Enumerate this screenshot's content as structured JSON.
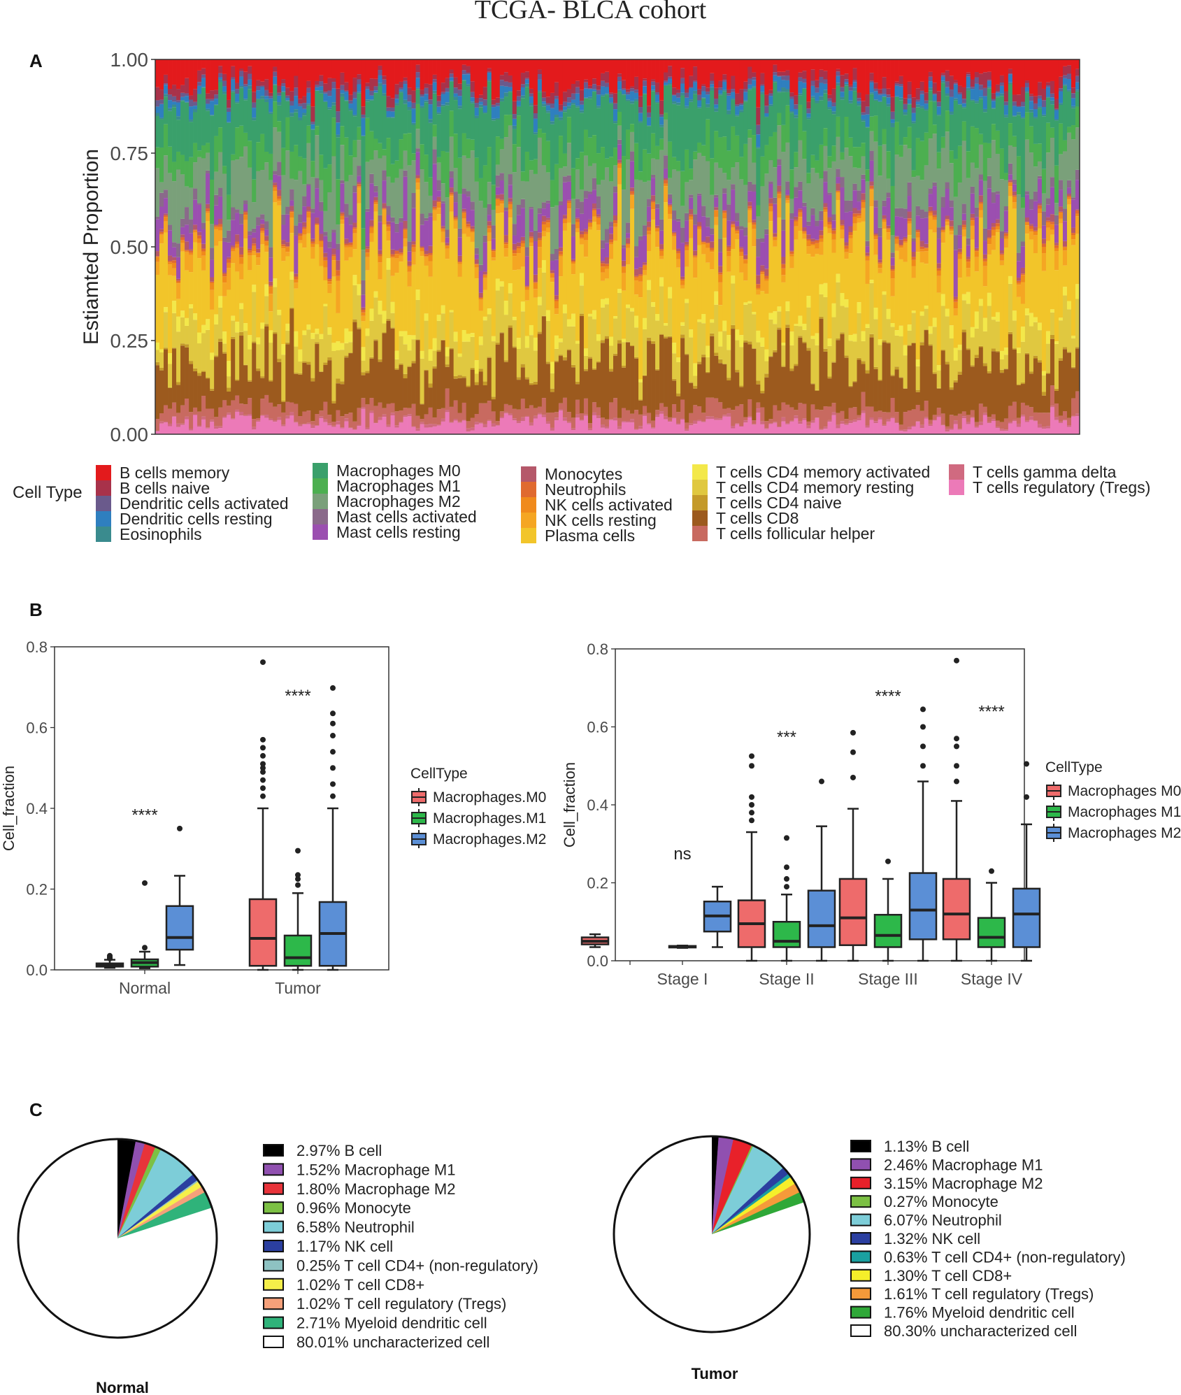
{
  "figure_title": "TCGA- BLCA cohort",
  "panel_labels": [
    "A",
    "B",
    "C"
  ],
  "colors": {
    "B cells memory": "#e31a1c",
    "B cells naive": "#a8324a",
    "Dendritic cells activated": "#6a5a8c",
    "Dendritic cells resting": "#2f7fbf",
    "Eosinophils": "#3a8b8e",
    "Macrophages M0": "#3aa06b",
    "Macrophages M1": "#4caf50",
    "Macrophages M2": "#7aa07a",
    "Mast cells activated": "#8a6a8a",
    "Mast cells resting": "#9b4fb0",
    "Monocytes": "#b5586a",
    "Neutrophils": "#e06a30",
    "NK cells activated": "#f08a1c",
    "NK cells resting": "#f5a623",
    "Plasma cells": "#f2c52a",
    "T cells CD4 memory activated": "#f3e84a",
    "T cells CD4 memory resting": "#e0c840",
    "T cells CD4 naive": "#c49a2a",
    "T cells CD8": "#9c5a1e",
    "T cells follicular helper": "#c86a60",
    "T cells gamma delta": "#d06a80",
    "T cells regulatory (Tregs)": "#ec7ab8",
    "box_m0": "#ee6b6b",
    "box_m1": "#2db84a",
    "box_m2": "#5b8fd6"
  },
  "chart_data": [
    {
      "id": "A",
      "type": "bar",
      "stacked": true,
      "ylabel": "Estiamted Proportion",
      "xlabel": "",
      "ylim": [
        0,
        1
      ],
      "yticks": [
        "0.00",
        "0.25",
        "0.50",
        "0.75",
        "1.00"
      ],
      "n_samples": 220,
      "legend_title": "Cell Type",
      "series": [
        {
          "name": "T cells regulatory (Tregs)",
          "mean": 0.03
        },
        {
          "name": "T cells gamma delta",
          "mean": 0.005
        },
        {
          "name": "T cells follicular helper",
          "mean": 0.03
        },
        {
          "name": "T cells CD8",
          "mean": 0.12
        },
        {
          "name": "T cells CD4 naive",
          "mean": 0.005
        },
        {
          "name": "T cells CD4 memory resting",
          "mean": 0.08
        },
        {
          "name": "T cells CD4 memory activated",
          "mean": 0.02
        },
        {
          "name": "Plasma cells",
          "mean": 0.17
        },
        {
          "name": "NK cells resting",
          "mean": 0.03
        },
        {
          "name": "NK cells activated",
          "mean": 0.01
        },
        {
          "name": "Neutrophils",
          "mean": 0.005
        },
        {
          "name": "Monocytes",
          "mean": 0.01
        },
        {
          "name": "Mast cells resting",
          "mean": 0.05
        },
        {
          "name": "Mast cells activated",
          "mean": 0.02
        },
        {
          "name": "Macrophages M2",
          "mean": 0.1
        },
        {
          "name": "Macrophages M1",
          "mean": 0.06
        },
        {
          "name": "Macrophages M0",
          "mean": 0.1
        },
        {
          "name": "Eosinophils",
          "mean": 0.005
        },
        {
          "name": "Dendritic cells resting",
          "mean": 0.02
        },
        {
          "name": "Dendritic cells activated",
          "mean": 0.01
        },
        {
          "name": "B cells naive",
          "mean": 0.02
        },
        {
          "name": "B cells memory",
          "mean": 0.06
        }
      ],
      "legend_columns": [
        [
          "B cells memory",
          "B cells naive",
          "Dendritic cells activated",
          "Dendritic cells resting",
          "Eosinophils"
        ],
        [
          "Macrophages M0",
          "Macrophages M1",
          "Macrophages M2",
          "Mast cells activated",
          "Mast cells resting"
        ],
        [
          "Monocytes",
          "Neutrophils",
          "NK cells activated",
          "NK cells resting",
          "Plasma cells"
        ],
        [
          "T cells CD4 memory activated",
          "T cells CD4 memory resting",
          "T cells CD4 naive",
          "T cells CD8",
          "T cells follicular helper"
        ],
        [
          "T cells gamma delta",
          "T cells regulatory (Tregs)"
        ]
      ]
    },
    {
      "id": "B-left",
      "type": "box",
      "ylabel": "Cell_fraction",
      "ylim": [
        0,
        0.8
      ],
      "yticks": [
        "0.0",
        "0.2",
        "0.4",
        "0.6",
        "0.8"
      ],
      "categories": [
        "Normal",
        "Tumor"
      ],
      "legend_title": "CellType",
      "legend": [
        "Macrophages.M0",
        "Macrophages.M1",
        "Macrophages.M2"
      ],
      "groups": [
        {
          "category": "Normal",
          "sig": "****",
          "sig_y": 0.37,
          "boxes": [
            {
              "series": 0,
              "q1": 0.008,
              "median": 0.012,
              "q3": 0.016,
              "wlo": 0.005,
              "whi": 0.025,
              "outliers": [
                0.028,
                0.03,
                0.032,
                0.035
              ]
            },
            {
              "series": 1,
              "q1": 0.008,
              "median": 0.018,
              "q3": 0.026,
              "wlo": 0.004,
              "whi": 0.045,
              "outliers": [
                0.055,
                0.215
              ]
            },
            {
              "series": 2,
              "q1": 0.05,
              "median": 0.08,
              "q3": 0.158,
              "wlo": 0.012,
              "whi": 0.233,
              "outliers": [
                0.35
              ]
            }
          ]
        },
        {
          "category": "Tumor",
          "sig": "****",
          "sig_y": 0.665,
          "boxes": [
            {
              "series": 0,
              "q1": 0.01,
              "median": 0.078,
              "q3": 0.175,
              "wlo": 0.0,
              "whi": 0.4,
              "outliers": [
                0.43,
                0.45,
                0.47,
                0.49,
                0.5,
                0.51,
                0.53,
                0.55,
                0.57,
                0.762
              ]
            },
            {
              "series": 1,
              "q1": 0.01,
              "median": 0.03,
              "q3": 0.085,
              "wlo": 0.0,
              "whi": 0.19,
              "outliers": [
                0.21,
                0.225,
                0.235,
                0.295
              ]
            },
            {
              "series": 2,
              "q1": 0.01,
              "median": 0.09,
              "q3": 0.168,
              "wlo": 0.0,
              "whi": 0.4,
              "outliers": [
                0.43,
                0.46,
                0.5,
                0.54,
                0.58,
                0.61,
                0.635,
                0.698
              ]
            }
          ]
        }
      ]
    },
    {
      "id": "B-right",
      "type": "box",
      "ylabel": "Cell_fraction",
      "ylim": [
        0,
        0.8
      ],
      "yticks": [
        "0.0",
        "0.2",
        "0.4",
        "0.6",
        "0.8"
      ],
      "categories": [
        "",
        "Stage I",
        "Stage II",
        "Stage III",
        "Stage IV"
      ],
      "legend_title": "CellType",
      "legend": [
        "Macrophages M0",
        "Macrophages M1",
        "Macrophages M2"
      ],
      "groups": [
        {
          "category": "",
          "boxes": [
            {
              "series": 0,
              "q1": 0.042,
              "median": 0.05,
              "q3": 0.06,
              "wlo": 0.035,
              "whi": 0.068,
              "outliers": []
            }
          ]
        },
        {
          "category": "Stage I",
          "sig": "ns",
          "sig_y": 0.26,
          "boxes": [
            {
              "series": 1,
              "q1": 0.034,
              "median": 0.036,
              "q3": 0.038,
              "wlo": 0.033,
              "whi": 0.039,
              "outliers": []
            },
            {
              "series": 2,
              "q1": 0.075,
              "median": 0.115,
              "q3": 0.152,
              "wlo": 0.035,
              "whi": 0.19,
              "outliers": []
            }
          ]
        },
        {
          "category": "Stage II",
          "sig": "***",
          "sig_y": 0.56,
          "boxes": [
            {
              "series": 0,
              "q1": 0.035,
              "median": 0.095,
              "q3": 0.155,
              "wlo": 0.0,
              "whi": 0.33,
              "outliers": [
                0.36,
                0.38,
                0.4,
                0.42,
                0.5,
                0.525
              ]
            },
            {
              "series": 1,
              "q1": 0.035,
              "median": 0.05,
              "q3": 0.1,
              "wlo": 0.0,
              "whi": 0.17,
              "outliers": [
                0.19,
                0.21,
                0.24,
                0.315
              ]
            },
            {
              "series": 2,
              "q1": 0.035,
              "median": 0.09,
              "q3": 0.18,
              "wlo": 0.0,
              "whi": 0.345,
              "outliers": [
                0.46
              ]
            }
          ]
        },
        {
          "category": "Stage III",
          "sig": "****",
          "sig_y": 0.665,
          "boxes": [
            {
              "series": 0,
              "q1": 0.04,
              "median": 0.11,
              "q3": 0.21,
              "wlo": 0.0,
              "whi": 0.39,
              "outliers": [
                0.47,
                0.535,
                0.585
              ]
            },
            {
              "series": 1,
              "q1": 0.035,
              "median": 0.065,
              "q3": 0.118,
              "wlo": 0.0,
              "whi": 0.21,
              "outliers": [
                0.255
              ]
            },
            {
              "series": 2,
              "q1": 0.055,
              "median": 0.13,
              "q3": 0.225,
              "wlo": 0.0,
              "whi": 0.46,
              "outliers": [
                0.5,
                0.55,
                0.6,
                0.645
              ]
            }
          ]
        },
        {
          "category": "Stage IV",
          "sig": "****",
          "sig_y": 0.625,
          "boxes": [
            {
              "series": 0,
              "q1": 0.055,
              "median": 0.12,
              "q3": 0.21,
              "wlo": 0.0,
              "whi": 0.41,
              "outliers": [
                0.46,
                0.5,
                0.55,
                0.57,
                0.77
              ]
            },
            {
              "series": 1,
              "q1": 0.035,
              "median": 0.06,
              "q3": 0.11,
              "wlo": 0.0,
              "whi": 0.2,
              "outliers": [
                0.23
              ]
            },
            {
              "series": 2,
              "q1": 0.035,
              "median": 0.12,
              "q3": 0.185,
              "wlo": 0.0,
              "whi": 0.35,
              "outliers": [
                0.42,
                0.505
              ]
            }
          ]
        }
      ]
    },
    {
      "id": "C-normal",
      "type": "pie",
      "title": "Normal",
      "slices": [
        {
          "label": "2.97%  B cell",
          "value": 2.97,
          "color": "#000000"
        },
        {
          "label": "1.52%  Macrophage M1",
          "value": 1.52,
          "color": "#9050b0"
        },
        {
          "label": "1.80%  Macrophage M2",
          "value": 1.8,
          "color": "#e8333a"
        },
        {
          "label": "0.96%  Monocyte",
          "value": 0.96,
          "color": "#7cc044"
        },
        {
          "label": "6.58%  Neutrophil",
          "value": 6.58,
          "color": "#7dcdd8"
        },
        {
          "label": "1.17%  NK cell",
          "value": 1.17,
          "color": "#2b3fa0"
        },
        {
          "label": "0.25%  T cell CD4+ (non-regulatory)",
          "value": 0.25,
          "color": "#8ec2c2"
        },
        {
          "label": "1.02%  T cell CD8+",
          "value": 1.02,
          "color": "#f5ef4a"
        },
        {
          "label": "1.02%  T cell regulatory (Tregs)",
          "value": 1.02,
          "color": "#f5a07a"
        },
        {
          "label": "2.71%  Myeloid dendritic cell",
          "value": 2.71,
          "color": "#2fb37a"
        },
        {
          "label": "80.01%  uncharacterized cell",
          "value": 80.01,
          "color": "#ffffff"
        }
      ]
    },
    {
      "id": "C-tumor",
      "type": "pie",
      "title": "Tumor",
      "slices": [
        {
          "label": "1.13%  B cell",
          "value": 1.13,
          "color": "#000000"
        },
        {
          "label": "2.46%  Macrophage M1",
          "value": 2.46,
          "color": "#9050b0"
        },
        {
          "label": "3.15%  Macrophage M2",
          "value": 3.15,
          "color": "#e8212a"
        },
        {
          "label": "0.27%  Monocyte",
          "value": 0.27,
          "color": "#7cc044"
        },
        {
          "label": "6.07%  Neutrophil",
          "value": 6.07,
          "color": "#7dcdd8"
        },
        {
          "label": "1.32%  NK cell",
          "value": 1.32,
          "color": "#2b3fa0"
        },
        {
          "label": "0.63%  T cell CD4+ (non-regulatory)",
          "value": 0.63,
          "color": "#1aa0a0"
        },
        {
          "label": "1.30%  T cell CD8+",
          "value": 1.3,
          "color": "#f5ef2a"
        },
        {
          "label": "1.61%  T cell regulatory (Tregs)",
          "value": 1.61,
          "color": "#f59a3a"
        },
        {
          "label": "1.76%  Myeloid dendritic cell",
          "value": 1.76,
          "color": "#2fa838"
        },
        {
          "label": "80.30%  uncharacterized cell",
          "value": 80.3,
          "color": "#ffffff"
        }
      ]
    }
  ]
}
